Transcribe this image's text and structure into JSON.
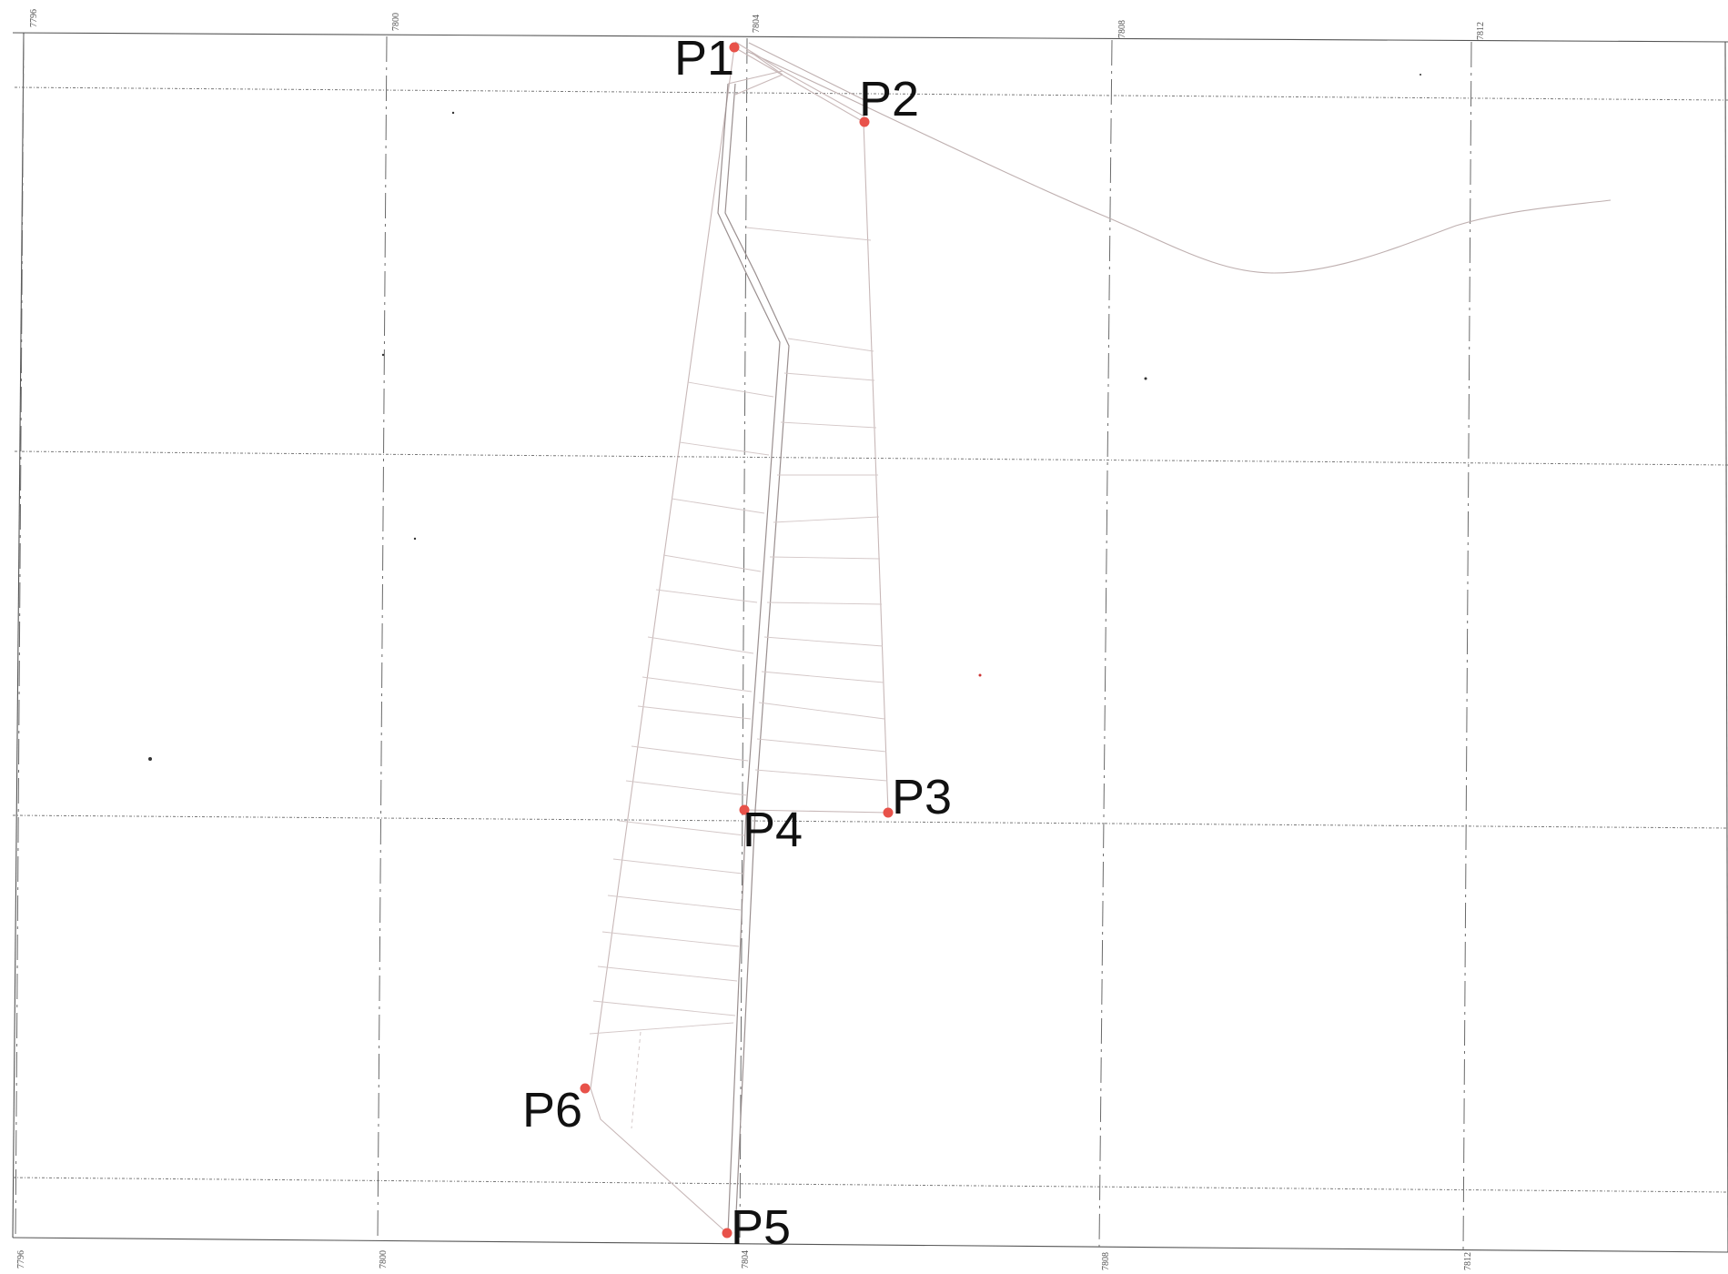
{
  "map": {
    "grid_x_labels_top": [
      "7796",
      "7800",
      "7804",
      "7808",
      "7812"
    ],
    "grid_x_labels_bottom": [
      "7796",
      "7800",
      "7804",
      "7808",
      "7812"
    ],
    "colors": {
      "point_marker": "#e8524a",
      "point_label": "#111111",
      "parcel_lines": "#c8b8b8",
      "grid_lines": "#6a6a6a"
    },
    "points": [
      {
        "id": "P1",
        "label": "P1"
      },
      {
        "id": "P2",
        "label": "P2"
      },
      {
        "id": "P3",
        "label": "P3"
      },
      {
        "id": "P4",
        "label": "P4"
      },
      {
        "id": "P5",
        "label": "P5"
      },
      {
        "id": "P6",
        "label": "P6"
      }
    ]
  }
}
